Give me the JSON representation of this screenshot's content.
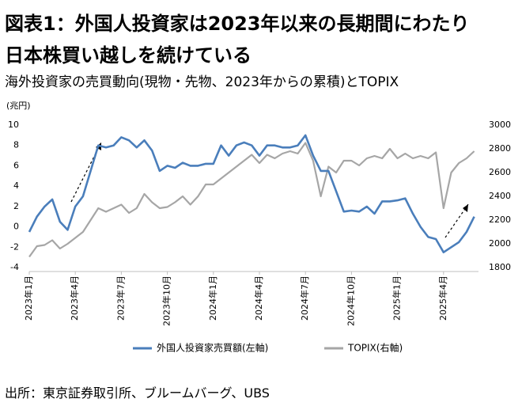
{
  "chart_data": {
    "type": "line",
    "title": "図表1：外国人投資家は2023年以来の長期間にわたり日本株買い越しを続けている",
    "title_lines": [
      "図表1：外国人投資家は2023年以来の長期間にわたり",
      "日本株買い越しを続けている"
    ],
    "subtitle": "海外投資家の売買動向(現物・先物、2023年からの累積)とTOPIX",
    "y_label": "(兆円)",
    "source": "出所：東京証券取引所、ブルームバーグ、UBS",
    "categories": [
      "2023年1月",
      null,
      null,
      null,
      null,
      null,
      "2023年4月",
      null,
      null,
      null,
      null,
      null,
      "2023年7月",
      null,
      null,
      null,
      null,
      null,
      "2023年10月",
      null,
      null,
      null,
      null,
      null,
      "2024年1月",
      null,
      null,
      null,
      null,
      null,
      "2024年4月",
      null,
      null,
      null,
      null,
      null,
      "2024年7月",
      null,
      null,
      null,
      null,
      null,
      "2024年10月",
      null,
      null,
      null,
      null,
      null,
      "2025年1月",
      null,
      null,
      null,
      null,
      null,
      "2025年4月",
      null,
      null,
      null,
      null
    ],
    "series": [
      {
        "name": "外国人投資家売買額(左軸)",
        "color": "#4a7ebb",
        "axis": "y",
        "values": [
          -0.5,
          1.0,
          2.0,
          2.7,
          0.5,
          -0.3,
          2.0,
          3.0,
          5.5,
          8.0,
          7.8,
          8.0,
          8.8,
          8.5,
          7.8,
          8.5,
          7.5,
          5.5,
          6.0,
          5.8,
          6.3,
          6.0,
          6.0,
          6.2,
          6.2,
          8.0,
          7.0,
          8.0,
          8.3,
          8.0,
          7.0,
          8.0,
          8.0,
          7.8,
          7.8,
          8.0,
          9.0,
          7.0,
          5.5,
          5.5,
          3.5,
          1.5,
          1.6,
          1.5,
          2.0,
          1.3,
          2.5,
          2.5,
          2.6,
          2.8,
          1.3,
          0.0,
          -1.0,
          -1.2,
          -2.5,
          -2.0,
          -1.5,
          -0.5,
          1.0
        ]
      },
      {
        "name": "TOPIX(右軸)",
        "color": "#a6a6a6",
        "axis": "y2",
        "values": [
          1890,
          1980,
          1990,
          2030,
          1960,
          2000,
          2050,
          2100,
          2200,
          2300,
          2270,
          2300,
          2330,
          2260,
          2300,
          2420,
          2350,
          2300,
          2310,
          2350,
          2400,
          2330,
          2400,
          2500,
          2500,
          2550,
          2600,
          2650,
          2700,
          2750,
          2680,
          2750,
          2720,
          2760,
          2780,
          2760,
          2850,
          2700,
          2400,
          2650,
          2600,
          2700,
          2700,
          2660,
          2720,
          2740,
          2720,
          2800,
          2720,
          2760,
          2720,
          2740,
          2720,
          2770,
          2300,
          2600,
          2680,
          2720,
          2780
        ]
      }
    ],
    "ylim": [
      -4,
      10
    ],
    "yticks": [
      -4,
      -2,
      0,
      2,
      4,
      6,
      8,
      10
    ],
    "y2lim": [
      1800,
      3000
    ],
    "y2ticks": [
      1800,
      2000,
      2200,
      2400,
      2600,
      2800,
      3000
    ],
    "legend": "bottom"
  }
}
